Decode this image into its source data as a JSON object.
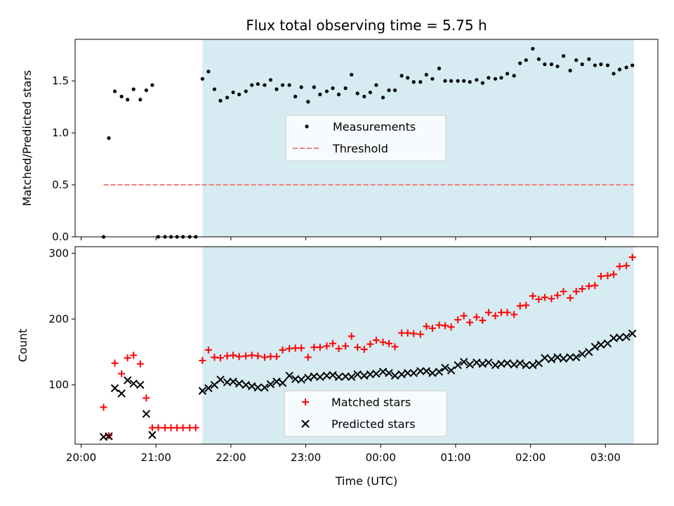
{
  "chart_data": [
    {
      "type": "scatter",
      "title": "Flux total observing time = 5.75 h",
      "ylabel": "Matched/Predicted stars",
      "xlabel": "",
      "xlim": [
        -0.08,
        7.7
      ],
      "ylim": [
        0,
        1.9
      ],
      "yticks": [
        0.0,
        0.5,
        1.0,
        1.5
      ],
      "ytick_labels": [
        "0.0",
        "0.5",
        "1.0",
        "1.5"
      ],
      "shaded_span": [
        1.62,
        7.38
      ],
      "shade_color": "#add8e6",
      "legend": {
        "placement": "center",
        "entries": [
          "Measurements",
          "Threshold"
        ]
      },
      "threshold": {
        "name": "Threshold",
        "y": 0.5,
        "x_start": 0.3,
        "x_end": 7.38,
        "color": "#f08080"
      },
      "series": [
        {
          "name": "Measurements",
          "color": "#000000",
          "marker": "dot",
          "x": [
            0.3,
            0.37,
            0.45,
            0.54,
            0.62,
            0.7,
            0.79,
            0.87,
            0.95,
            1.03,
            1.12,
            1.2,
            1.28,
            1.36,
            1.45,
            1.53,
            1.62,
            1.7,
            1.78,
            1.86,
            1.95,
            2.03,
            2.11,
            2.2,
            2.28,
            2.36,
            2.45,
            2.53,
            2.61,
            2.69,
            2.78,
            2.86,
            2.94,
            3.03,
            3.11,
            3.19,
            3.28,
            3.36,
            3.44,
            3.53,
            3.61,
            3.69,
            3.78,
            3.86,
            3.94,
            4.03,
            4.11,
            4.19,
            4.28,
            4.36,
            4.44,
            4.53,
            4.61,
            4.69,
            4.78,
            4.86,
            4.94,
            5.03,
            5.11,
            5.19,
            5.28,
            5.36,
            5.44,
            5.53,
            5.61,
            5.69,
            5.78,
            5.86,
            5.94,
            6.03,
            6.11,
            6.19,
            6.28,
            6.36,
            6.44,
            6.53,
            6.61,
            6.69,
            6.78,
            6.86,
            6.94,
            7.03,
            7.11,
            7.19,
            7.28,
            7.36
          ],
          "y": [
            0.0,
            0.95,
            1.4,
            1.35,
            1.32,
            1.42,
            1.32,
            1.41,
            1.46,
            0.0,
            0.0,
            0.0,
            0.0,
            0.0,
            0.0,
            0.0,
            1.52,
            1.59,
            1.42,
            1.31,
            1.34,
            1.39,
            1.37,
            1.4,
            1.46,
            1.47,
            1.46,
            1.51,
            1.42,
            1.46,
            1.46,
            1.35,
            1.44,
            1.3,
            1.44,
            1.37,
            1.4,
            1.43,
            1.37,
            1.43,
            1.56,
            1.38,
            1.35,
            1.39,
            1.46,
            1.34,
            1.41,
            1.41,
            1.55,
            1.53,
            1.49,
            1.49,
            1.56,
            1.52,
            1.62,
            1.5,
            1.5,
            1.5,
            1.5,
            1.49,
            1.51,
            1.48,
            1.53,
            1.52,
            1.53,
            1.57,
            1.55,
            1.67,
            1.7,
            1.81,
            1.71,
            1.66,
            1.66,
            1.64,
            1.74,
            1.6,
            1.7,
            1.66,
            1.71,
            1.65,
            1.66,
            1.65,
            1.57,
            1.61,
            1.63,
            1.65
          ]
        }
      ]
    },
    {
      "type": "scatter",
      "title": "",
      "ylabel": "Count",
      "xlabel": "Time (UTC)",
      "xlim": [
        -0.08,
        7.7
      ],
      "ylim": [
        10,
        310
      ],
      "yticks": [
        100,
        200,
        300
      ],
      "ytick_labels": [
        "100",
        "200",
        "300"
      ],
      "xticks": [
        0,
        1,
        2,
        3,
        4,
        5,
        6,
        7
      ],
      "xtick_labels": [
        "20:00",
        "21:00",
        "22:00",
        "23:00",
        "00:00",
        "01:00",
        "02:00",
        "03:00"
      ],
      "shaded_span": [
        1.62,
        7.38
      ],
      "shade_color": "#add8e6",
      "legend": {
        "placement": "lower center",
        "entries": [
          "Matched stars",
          "Predicted stars"
        ]
      },
      "series": [
        {
          "name": "Matched stars",
          "color": "#ff0000",
          "marker": "plus",
          "x": [
            0.3,
            0.37,
            0.45,
            0.54,
            0.62,
            0.7,
            0.79,
            0.87,
            0.95,
            1.03,
            1.12,
            1.2,
            1.28,
            1.36,
            1.45,
            1.53,
            1.62,
            1.7,
            1.78,
            1.86,
            1.95,
            2.03,
            2.11,
            2.2,
            2.28,
            2.36,
            2.45,
            2.53,
            2.61,
            2.69,
            2.78,
            2.86,
            2.94,
            3.03,
            3.11,
            3.19,
            3.28,
            3.36,
            3.44,
            3.53,
            3.61,
            3.69,
            3.78,
            3.86,
            3.94,
            4.03,
            4.11,
            4.19,
            4.28,
            4.36,
            4.44,
            4.53,
            4.61,
            4.69,
            4.78,
            4.86,
            4.94,
            5.03,
            5.11,
            5.19,
            5.28,
            5.36,
            5.44,
            5.53,
            5.61,
            5.69,
            5.78,
            5.86,
            5.94,
            6.03,
            6.11,
            6.19,
            6.28,
            6.36,
            6.44,
            6.53,
            6.61,
            6.69,
            6.78,
            6.86,
            6.94,
            7.03,
            7.11,
            7.19,
            7.28,
            7.36
          ],
          "y": [
            66,
            23,
            133,
            117,
            141,
            145,
            132,
            80,
            35,
            35,
            35,
            35,
            35,
            35,
            35,
            35,
            137,
            153,
            142,
            141,
            144,
            145,
            143,
            144,
            145,
            144,
            142,
            143,
            143,
            153,
            155,
            156,
            156,
            142,
            157,
            157,
            159,
            163,
            155,
            159,
            174,
            157,
            154,
            162,
            168,
            165,
            163,
            158,
            179,
            179,
            178,
            177,
            189,
            186,
            191,
            190,
            188,
            199,
            205,
            195,
            203,
            198,
            210,
            205,
            210,
            210,
            207,
            220,
            221,
            235,
            230,
            233,
            231,
            236,
            242,
            232,
            242,
            246,
            250,
            251,
            265,
            266,
            268,
            280,
            281,
            294
          ]
        },
        {
          "name": "Predicted stars",
          "color": "#000000",
          "marker": "x",
          "x": [
            0.3,
            0.37,
            0.45,
            0.54,
            0.62,
            0.7,
            0.79,
            0.87,
            0.95,
            1.62,
            1.7,
            1.78,
            1.86,
            1.95,
            2.03,
            2.11,
            2.2,
            2.28,
            2.36,
            2.45,
            2.53,
            2.61,
            2.69,
            2.78,
            2.86,
            2.94,
            3.03,
            3.11,
            3.19,
            3.28,
            3.36,
            3.44,
            3.53,
            3.61,
            3.69,
            3.78,
            3.86,
            3.94,
            4.03,
            4.11,
            4.19,
            4.28,
            4.36,
            4.44,
            4.53,
            4.61,
            4.69,
            4.78,
            4.86,
            4.94,
            5.03,
            5.11,
            5.19,
            5.28,
            5.36,
            5.44,
            5.53,
            5.61,
            5.69,
            5.78,
            5.86,
            5.94,
            6.03,
            6.11,
            6.19,
            6.28,
            6.36,
            6.44,
            6.53,
            6.61,
            6.69,
            6.78,
            6.86,
            6.94,
            7.03,
            7.11,
            7.19,
            7.28,
            7.36
          ],
          "y": [
            21,
            22,
            95,
            87,
            107,
            102,
            100,
            56,
            24,
            91,
            95,
            100,
            108,
            104,
            105,
            102,
            100,
            98,
            96,
            96,
            101,
            105,
            103,
            114,
            109,
            108,
            111,
            113,
            112,
            114,
            115,
            112,
            113,
            112,
            116,
            114,
            116,
            117,
            120,
            118,
            114,
            116,
            118,
            118,
            121,
            121,
            118,
            120,
            126,
            122,
            130,
            135,
            131,
            134,
            132,
            134,
            130,
            132,
            133,
            131,
            133,
            130,
            130,
            133,
            141,
            139,
            142,
            140,
            142,
            142,
            147,
            150,
            158,
            161,
            163,
            171,
            172,
            173,
            178
          ]
        }
      ]
    }
  ]
}
